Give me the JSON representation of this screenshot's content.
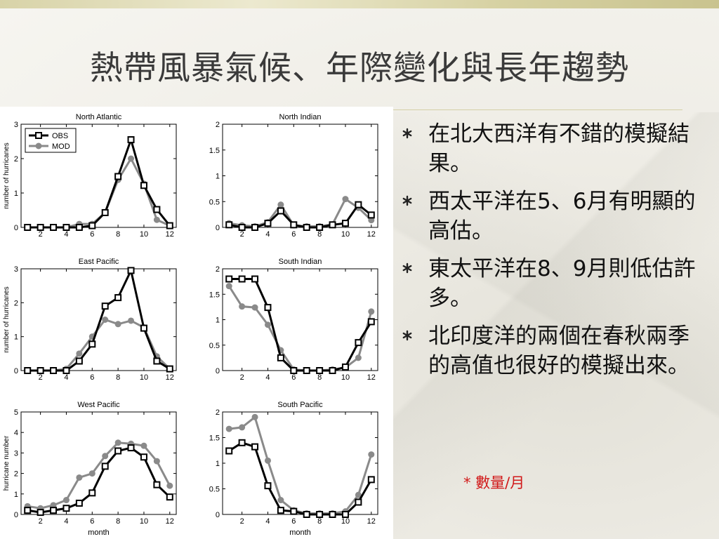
{
  "slide": {
    "title": "熱帶風暴氣候、年際變化與長年趨勢",
    "bullets": [
      "在北大西洋有不錯的模擬結果。",
      "西太平洋在5、6月有明顯的高估。",
      "東太平洋在8、9月則低估許多。",
      "北印度洋的兩個在春秋兩季的高值也很好的模擬出來。"
    ],
    "note": "* 數量/月"
  },
  "colors": {
    "obs": "#000000",
    "mod": "#8a8a8a",
    "note": "#d11a1a"
  },
  "chart_data": [
    {
      "type": "line",
      "title": "North Atlantic",
      "ylabel": "number of hurricanes",
      "xlabel": "",
      "xlim": [
        1,
        12
      ],
      "ylim": [
        0,
        3
      ],
      "x_ticks": [
        "2",
        "4",
        "6",
        "8",
        "10",
        "12"
      ],
      "y_ticks": [
        "0",
        "1",
        "2",
        "3"
      ],
      "legend": {
        "position": "top-left",
        "entries": [
          "OBS",
          "MOD"
        ]
      },
      "x": [
        1,
        2,
        3,
        4,
        5,
        6,
        7,
        8,
        9,
        10,
        11,
        12
      ],
      "series": [
        {
          "name": "OBS",
          "values": [
            0,
            0,
            0,
            0,
            0,
            0.05,
            0.43,
            1.48,
            2.55,
            1.22,
            0.52,
            0.05
          ]
        },
        {
          "name": "MOD",
          "values": [
            0,
            0,
            0,
            0,
            0.1,
            0.1,
            0.43,
            1.38,
            2.0,
            1.27,
            0.22,
            0.05
          ]
        }
      ]
    },
    {
      "type": "line",
      "title": "North Indian",
      "ylabel": "",
      "xlabel": "",
      "xlim": [
        1,
        12
      ],
      "ylim": [
        0,
        2
      ],
      "x_ticks": [
        "2",
        "4",
        "6",
        "8",
        "10",
        "12"
      ],
      "y_ticks": [
        "0",
        "0.5",
        "1",
        "1.5",
        "2"
      ],
      "x": [
        1,
        2,
        3,
        4,
        5,
        6,
        7,
        8,
        9,
        10,
        11,
        12
      ],
      "series": [
        {
          "values": [
            0.05,
            0,
            0,
            0.08,
            0.32,
            0.05,
            0,
            0,
            0.05,
            0.08,
            0.44,
            0.24
          ]
        },
        {
          "values": [
            0.08,
            0.04,
            0.02,
            0.1,
            0.44,
            0.04,
            0.02,
            0.02,
            0.06,
            0.55,
            0.38,
            0.14
          ]
        }
      ]
    },
    {
      "type": "line",
      "title": "East Pacific",
      "ylabel": "number of hurricanes",
      "xlabel": "",
      "xlim": [
        1,
        12
      ],
      "ylim": [
        0,
        3
      ],
      "x_ticks": [
        "2",
        "4",
        "6",
        "8",
        "10",
        "12"
      ],
      "y_ticks": [
        "0",
        "1",
        "2",
        "3"
      ],
      "x": [
        1,
        2,
        3,
        4,
        5,
        6,
        7,
        8,
        9,
        10,
        11,
        12
      ],
      "series": [
        {
          "values": [
            0,
            0,
            0,
            0,
            0.28,
            0.78,
            1.9,
            2.15,
            2.95,
            1.25,
            0.28,
            0.05
          ]
        },
        {
          "values": [
            0,
            0,
            0,
            0.05,
            0.5,
            1.0,
            1.5,
            1.37,
            1.47,
            1.27,
            0.42,
            0.05
          ]
        }
      ]
    },
    {
      "type": "line",
      "title": "South Indian",
      "ylabel": "",
      "xlabel": "",
      "xlim": [
        1,
        12
      ],
      "ylim": [
        0,
        2
      ],
      "x_ticks": [
        "2",
        "4",
        "6",
        "8",
        "10",
        "12"
      ],
      "y_ticks": [
        "0",
        "0.5",
        "1",
        "1.5",
        "2"
      ],
      "x": [
        1,
        2,
        3,
        4,
        5,
        6,
        7,
        8,
        9,
        10,
        11,
        12
      ],
      "series": [
        {
          "values": [
            1.8,
            1.8,
            1.8,
            1.24,
            0.25,
            0,
            0,
            0,
            0,
            0.07,
            0.55,
            0.96
          ]
        },
        {
          "values": [
            1.66,
            1.26,
            1.24,
            0.9,
            0.4,
            0.02,
            0,
            0,
            0.02,
            0.06,
            0.25,
            1.16
          ]
        }
      ]
    },
    {
      "type": "line",
      "title": "West Pacific",
      "ylabel": "hurricane number",
      "xlabel": "month",
      "xlim": [
        1,
        12
      ],
      "ylim": [
        0,
        5
      ],
      "x_ticks": [
        "2",
        "4",
        "6",
        "8",
        "10",
        "12"
      ],
      "y_ticks": [
        "0",
        "1",
        "2",
        "3",
        "4",
        "5"
      ],
      "x": [
        1,
        2,
        3,
        4,
        5,
        6,
        7,
        8,
        9,
        10,
        11,
        12
      ],
      "series": [
        {
          "values": [
            0.2,
            0.1,
            0.2,
            0.3,
            0.55,
            1.05,
            2.35,
            3.1,
            3.25,
            2.8,
            1.45,
            0.85
          ]
        },
        {
          "values": [
            0.4,
            0.3,
            0.45,
            0.7,
            1.8,
            2.0,
            2.85,
            3.5,
            3.45,
            3.35,
            2.6,
            1.4
          ]
        }
      ]
    },
    {
      "type": "line",
      "title": "South Pacific",
      "ylabel": "",
      "xlabel": "month",
      "xlim": [
        1,
        12
      ],
      "ylim": [
        0,
        2
      ],
      "x_ticks": [
        "2",
        "4",
        "6",
        "8",
        "10",
        "12"
      ],
      "y_ticks": [
        "0",
        "0.5",
        "1",
        "1.5",
        "2"
      ],
      "x": [
        1,
        2,
        3,
        4,
        5,
        6,
        7,
        8,
        9,
        10,
        11,
        12
      ],
      "series": [
        {
          "values": [
            1.24,
            1.4,
            1.32,
            0.56,
            0.08,
            0.06,
            0,
            0,
            0,
            0,
            0.24,
            0.68
          ]
        },
        {
          "values": [
            1.67,
            1.7,
            1.9,
            1.05,
            0.28,
            0.08,
            0.02,
            0.02,
            0.02,
            0.06,
            0.38,
            1.17
          ]
        }
      ]
    }
  ]
}
